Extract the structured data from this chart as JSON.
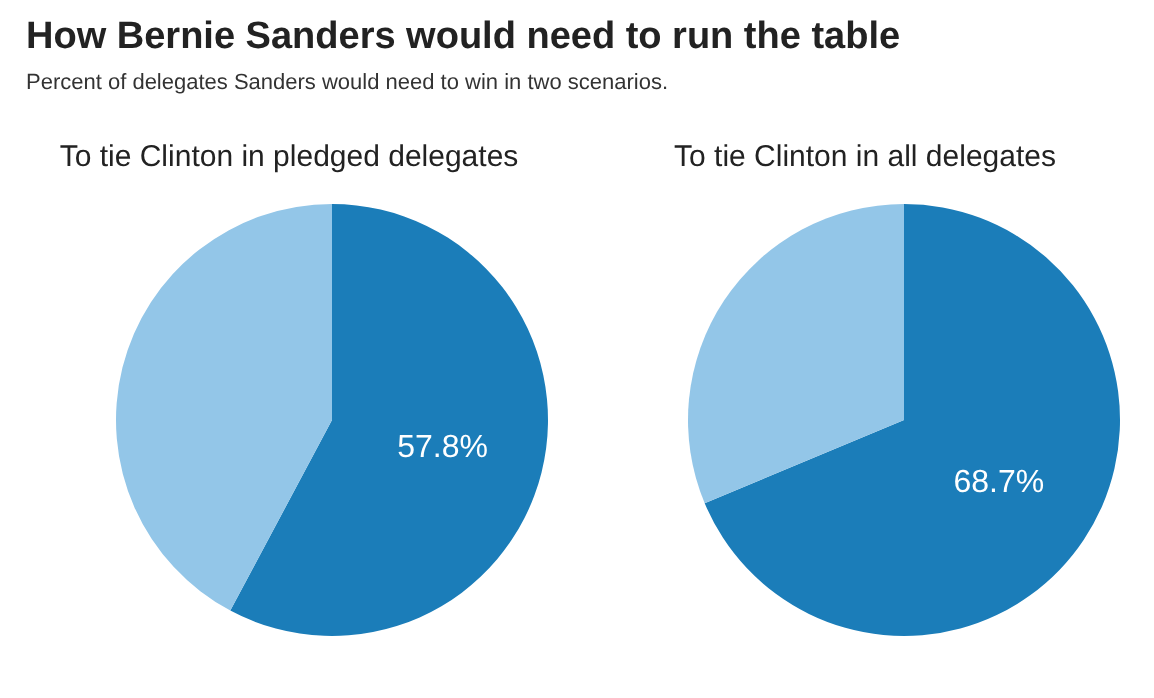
{
  "chart_data": [
    {
      "type": "other",
      "title": "How Bernie Sanders would need to run the table",
      "subtitle": "Percent of delegates Sanders would need to win in two scenarios."
    },
    {
      "type": "pie",
      "title": "To tie Clinton in pledged delegates",
      "categories": [
        null,
        null
      ],
      "values": [
        57.8,
        42.2
      ],
      "colors": [
        "#1b7db9",
        "#93c6e8"
      ],
      "value_labels": [
        "57.8%",
        null
      ]
    },
    {
      "type": "pie",
      "title": "To tie Clinton in all delegates",
      "categories": [
        null,
        null
      ],
      "values": [
        68.7,
        31.3
      ],
      "colors": [
        "#1b7db9",
        "#93c6e8"
      ],
      "value_labels": [
        "68.7%",
        null
      ]
    }
  ]
}
